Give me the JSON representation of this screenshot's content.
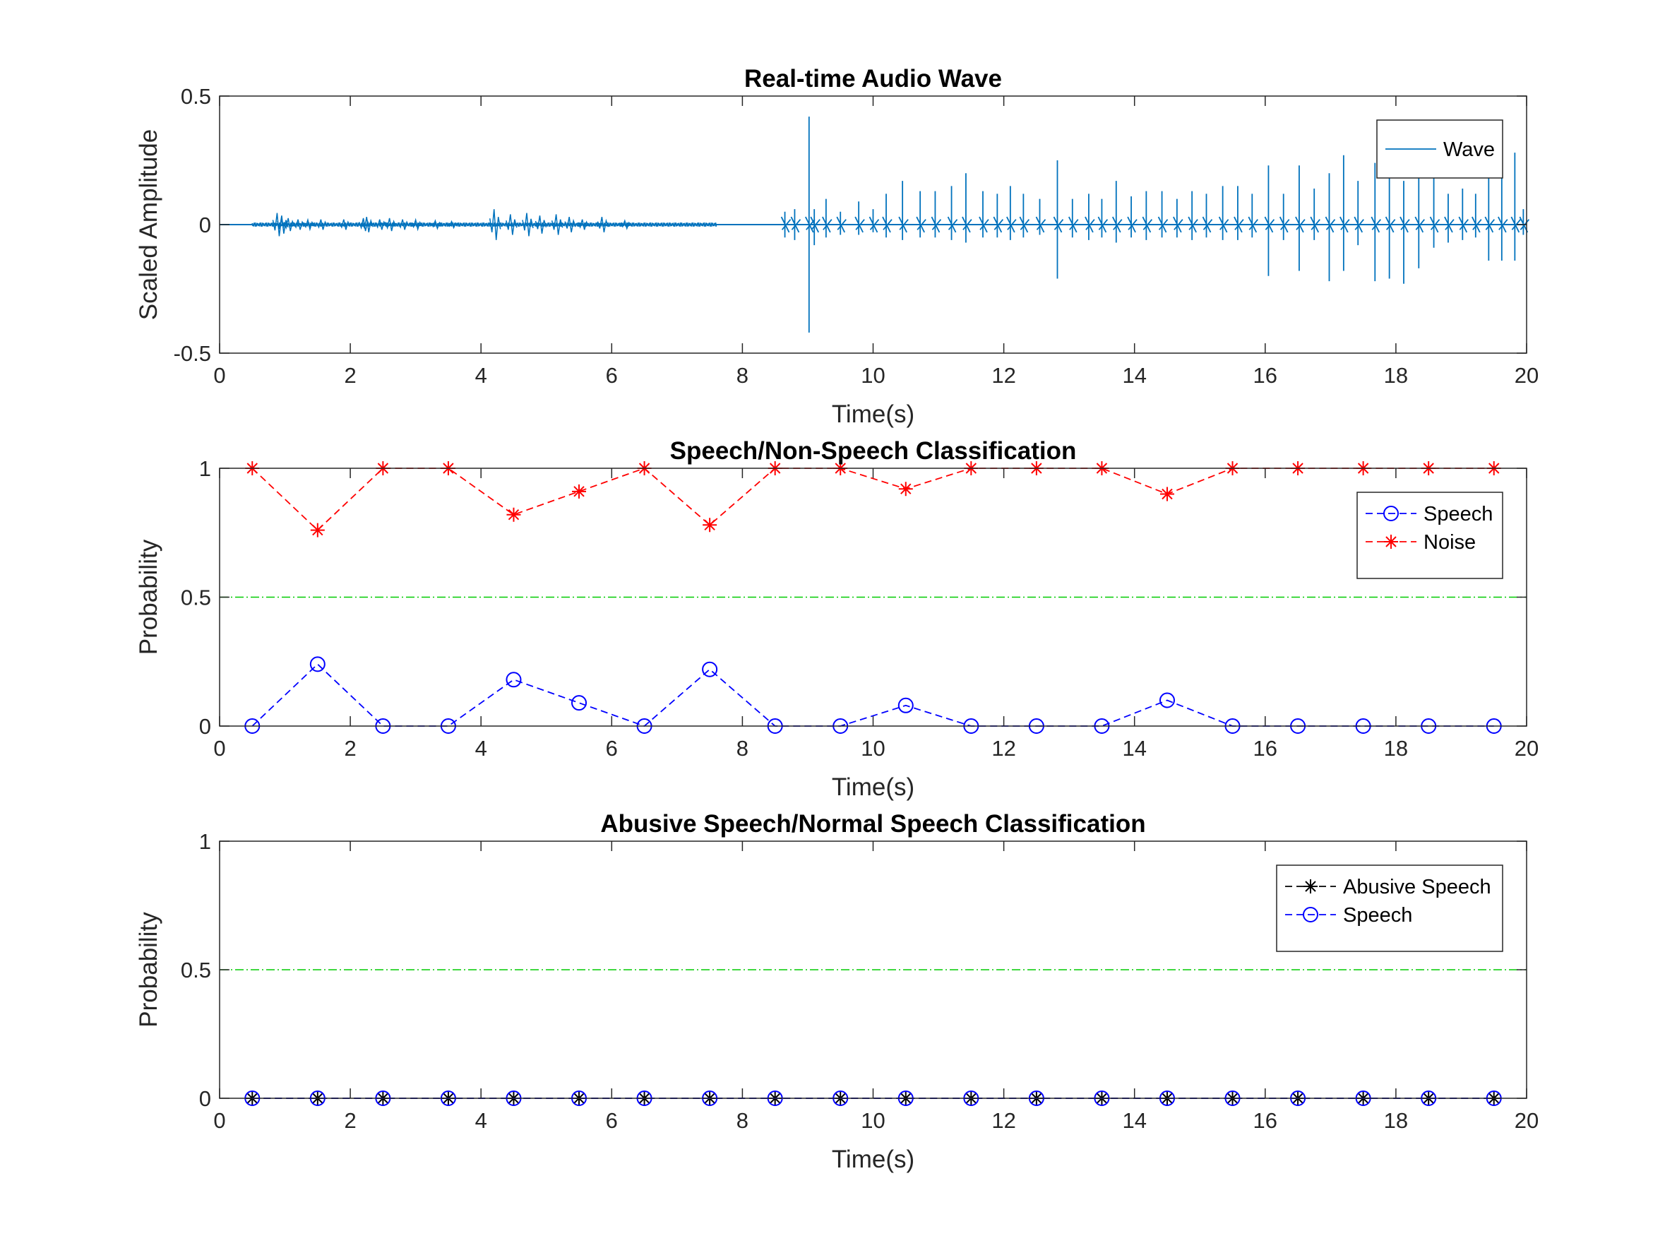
{
  "figure": {
    "background": "#ffffff",
    "axis_color": "#262626",
    "threshold_color": "#00cc00"
  },
  "chart_data": [
    {
      "type": "line",
      "title": "Real-time Audio Wave",
      "xlabel": "Time(s)",
      "ylabel": "Scaled Amplitude",
      "xlim": [
        0,
        20
      ],
      "ylim": [
        -0.5,
        0.5
      ],
      "xticks": [
        0,
        2,
        4,
        6,
        8,
        10,
        12,
        14,
        16,
        18,
        20
      ],
      "yticks": [
        -0.5,
        0,
        0.5
      ],
      "ytick_labels": [
        "-0.5",
        "0",
        "0.5"
      ],
      "legend_position": "top-right",
      "series": [
        {
          "name": "Wave",
          "color": "#0072bd",
          "marker": "none",
          "line_style": "solid",
          "quiet_start": 0.5,
          "quiet_end": 7.6,
          "quiet_amplitude": 0.008,
          "speech_bursts": [
            {
              "t": 0.88,
              "a": 0.045
            },
            {
              "t": 0.95,
              "a": 0.035
            },
            {
              "t": 1.05,
              "a": 0.025
            },
            {
              "t": 1.2,
              "a": 0.02
            },
            {
              "t": 1.35,
              "a": 0.018
            },
            {
              "t": 1.55,
              "a": 0.02
            },
            {
              "t": 1.9,
              "a": 0.02
            },
            {
              "t": 2.2,
              "a": 0.025
            },
            {
              "t": 2.25,
              "a": 0.03
            },
            {
              "t": 2.45,
              "a": 0.02
            },
            {
              "t": 2.6,
              "a": 0.025
            },
            {
              "t": 2.8,
              "a": 0.02
            },
            {
              "t": 3.0,
              "a": 0.018
            },
            {
              "t": 3.3,
              "a": 0.015
            },
            {
              "t": 3.55,
              "a": 0.012
            },
            {
              "t": 4.2,
              "a": 0.06
            },
            {
              "t": 4.45,
              "a": 0.04
            },
            {
              "t": 4.7,
              "a": 0.045
            },
            {
              "t": 4.9,
              "a": 0.035
            },
            {
              "t": 5.15,
              "a": 0.04
            },
            {
              "t": 5.35,
              "a": 0.03
            },
            {
              "t": 5.55,
              "a": 0.02
            },
            {
              "t": 5.85,
              "a": 0.03
            },
            {
              "t": 6.2,
              "a": 0.015
            }
          ],
          "clicks": [
            {
              "t": 8.65,
              "up": 0.05,
              "down": -0.05
            },
            {
              "t": 8.8,
              "up": 0.06,
              "down": -0.06
            },
            {
              "t": 9.02,
              "up": 0.42,
              "down": -0.42
            },
            {
              "t": 9.1,
              "up": 0.06,
              "down": -0.08
            },
            {
              "t": 9.28,
              "up": 0.1,
              "down": -0.05
            },
            {
              "t": 9.5,
              "up": 0.05,
              "down": -0.04
            },
            {
              "t": 9.78,
              "up": 0.09,
              "down": -0.04
            },
            {
              "t": 10.0,
              "up": 0.06,
              "down": -0.03
            },
            {
              "t": 10.2,
              "up": 0.12,
              "down": -0.05
            },
            {
              "t": 10.45,
              "up": 0.17,
              "down": -0.06
            },
            {
              "t": 10.72,
              "up": 0.13,
              "down": -0.05
            },
            {
              "t": 10.95,
              "up": 0.13,
              "down": -0.05
            },
            {
              "t": 11.2,
              "up": 0.15,
              "down": -0.06
            },
            {
              "t": 11.42,
              "up": 0.2,
              "down": -0.07
            },
            {
              "t": 11.68,
              "up": 0.13,
              "down": -0.05
            },
            {
              "t": 11.9,
              "up": 0.12,
              "down": -0.05
            },
            {
              "t": 12.1,
              "up": 0.15,
              "down": -0.06
            },
            {
              "t": 12.3,
              "up": 0.12,
              "down": -0.05
            },
            {
              "t": 12.55,
              "up": 0.1,
              "down": -0.04
            },
            {
              "t": 12.82,
              "up": 0.25,
              "down": -0.21
            },
            {
              "t": 13.05,
              "up": 0.1,
              "down": -0.05
            },
            {
              "t": 13.3,
              "up": 0.12,
              "down": -0.06
            },
            {
              "t": 13.5,
              "up": 0.1,
              "down": -0.05
            },
            {
              "t": 13.72,
              "up": 0.17,
              "down": -0.07
            },
            {
              "t": 13.95,
              "up": 0.11,
              "down": -0.05
            },
            {
              "t": 14.18,
              "up": 0.13,
              "down": -0.06
            },
            {
              "t": 14.42,
              "up": 0.13,
              "down": -0.05
            },
            {
              "t": 14.65,
              "up": 0.1,
              "down": -0.05
            },
            {
              "t": 14.88,
              "up": 0.13,
              "down": -0.06
            },
            {
              "t": 15.1,
              "up": 0.12,
              "down": -0.05
            },
            {
              "t": 15.35,
              "up": 0.15,
              "down": -0.06
            },
            {
              "t": 15.58,
              "up": 0.15,
              "down": -0.06
            },
            {
              "t": 15.8,
              "up": 0.12,
              "down": -0.05
            },
            {
              "t": 16.05,
              "up": 0.23,
              "down": -0.2
            },
            {
              "t": 16.28,
              "up": 0.12,
              "down": -0.06
            },
            {
              "t": 16.52,
              "up": 0.23,
              "down": -0.18
            },
            {
              "t": 16.75,
              "up": 0.14,
              "down": -0.06
            },
            {
              "t": 16.98,
              "up": 0.2,
              "down": -0.22
            },
            {
              "t": 17.2,
              "up": 0.27,
              "down": -0.18
            },
            {
              "t": 17.42,
              "up": 0.17,
              "down": -0.08
            },
            {
              "t": 17.68,
              "up": 0.24,
              "down": -0.22
            },
            {
              "t": 17.9,
              "up": 0.23,
              "down": -0.21
            },
            {
              "t": 18.12,
              "up": 0.17,
              "down": -0.23
            },
            {
              "t": 18.35,
              "up": 0.22,
              "down": -0.17
            },
            {
              "t": 18.58,
              "up": 0.21,
              "down": -0.09
            },
            {
              "t": 18.8,
              "up": 0.12,
              "down": -0.07
            },
            {
              "t": 19.02,
              "up": 0.14,
              "down": -0.06
            },
            {
              "t": 19.22,
              "up": 0.12,
              "down": -0.05
            },
            {
              "t": 19.42,
              "up": 0.26,
              "down": -0.14
            },
            {
              "t": 19.62,
              "up": 0.29,
              "down": -0.14
            },
            {
              "t": 19.82,
              "up": 0.28,
              "down": -0.14
            },
            {
              "t": 19.95,
              "up": 0.06,
              "down": -0.04
            }
          ]
        }
      ]
    },
    {
      "type": "line",
      "title": "Speech/Non-Speech Classification",
      "xlabel": "Time(s)",
      "ylabel": "Probability",
      "xlim": [
        0,
        20
      ],
      "ylim": [
        0,
        1
      ],
      "xticks": [
        0,
        2,
        4,
        6,
        8,
        10,
        12,
        14,
        16,
        18,
        20
      ],
      "yticks": [
        0,
        0.5,
        1
      ],
      "ytick_labels": [
        "0",
        "0.5",
        "1"
      ],
      "threshold": 0.5,
      "legend_position": "top-right",
      "x": [
        0.5,
        1.5,
        2.5,
        3.5,
        4.5,
        5.5,
        6.5,
        7.5,
        8.5,
        9.5,
        10.5,
        11.5,
        12.5,
        13.5,
        14.5,
        15.5,
        16.5,
        17.5,
        18.5,
        19.5
      ],
      "series": [
        {
          "name": "Speech",
          "color": "#0000ff",
          "marker": "circle",
          "line_style": "dashed",
          "values": [
            0,
            0.24,
            0,
            0,
            0.18,
            0.09,
            0,
            0.22,
            0,
            0,
            0.08,
            0,
            0,
            0,
            0.1,
            0,
            0,
            0,
            0,
            0
          ]
        },
        {
          "name": "Noise",
          "color": "#ff0000",
          "marker": "asterisk",
          "line_style": "dashed",
          "values": [
            1,
            0.76,
            1,
            1,
            0.82,
            0.91,
            1,
            0.78,
            1,
            1,
            0.92,
            1,
            1,
            1,
            0.9,
            1,
            1,
            1,
            1,
            1
          ]
        }
      ]
    },
    {
      "type": "line",
      "title": "Abusive Speech/Normal Speech Classification",
      "xlabel": "Time(s)",
      "ylabel": "Probability",
      "xlim": [
        0,
        20
      ],
      "ylim": [
        0,
        1
      ],
      "xticks": [
        0,
        2,
        4,
        6,
        8,
        10,
        12,
        14,
        16,
        18,
        20
      ],
      "yticks": [
        0,
        0.5,
        1
      ],
      "ytick_labels": [
        "0",
        "0.5",
        "1"
      ],
      "threshold": 0.5,
      "legend_position": "top-right",
      "x": [
        0.5,
        1.5,
        2.5,
        3.5,
        4.5,
        5.5,
        6.5,
        7.5,
        8.5,
        9.5,
        10.5,
        11.5,
        12.5,
        13.5,
        14.5,
        15.5,
        16.5,
        17.5,
        18.5,
        19.5
      ],
      "series": [
        {
          "name": "Abusive Speech",
          "color": "#000000",
          "marker": "asterisk",
          "line_style": "dashed",
          "values": [
            0,
            0,
            0,
            0,
            0,
            0,
            0,
            0,
            0,
            0,
            0,
            0,
            0,
            0,
            0,
            0,
            0,
            0,
            0,
            0
          ]
        },
        {
          "name": "Speech",
          "color": "#0000ff",
          "marker": "circle",
          "line_style": "dashed",
          "values": [
            0,
            0,
            0,
            0,
            0,
            0,
            0,
            0,
            0,
            0,
            0,
            0,
            0,
            0,
            0,
            0,
            0,
            0,
            0,
            0
          ]
        }
      ]
    }
  ]
}
